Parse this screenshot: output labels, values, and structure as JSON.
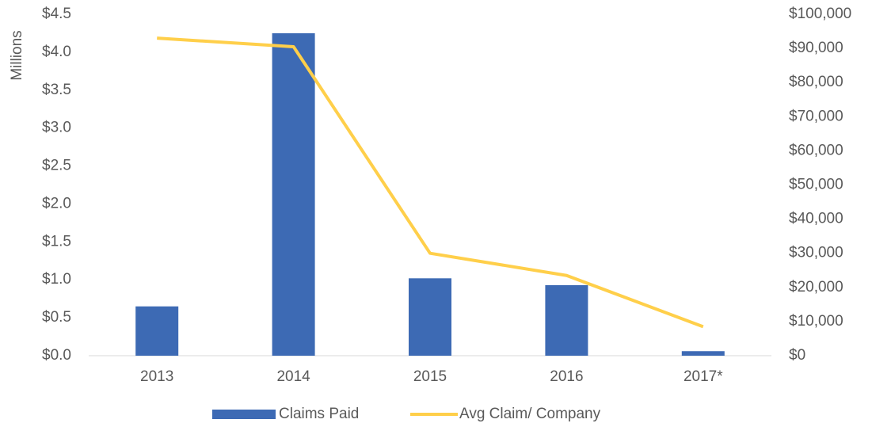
{
  "chart_data": {
    "type": "bar_line",
    "y_axis_label": "Millions",
    "categories": [
      "2013",
      "2014",
      "2015",
      "2016",
      "2017*"
    ],
    "series": [
      {
        "name": "Claims Paid",
        "type": "bar",
        "color": "#3d6ab4",
        "values": [
          0.65,
          4.25,
          1.02,
          0.93,
          0.06
        ]
      },
      {
        "name": "Avg Claim/ Company",
        "type": "line",
        "axis": "y2",
        "color": "#ffcf4a",
        "values": [
          93000,
          90500,
          30000,
          23500,
          8500
        ]
      }
    ],
    "ylim": [
      0,
      4.5
    ],
    "yticks": [
      {
        "value": 0,
        "label": "$0.0"
      },
      {
        "value": 0.5,
        "label": "$0.5"
      },
      {
        "value": 1,
        "label": "$1.0"
      },
      {
        "value": 1.5,
        "label": "$1.5"
      },
      {
        "value": 2,
        "label": "$2.0"
      },
      {
        "value": 2.5,
        "label": "$2.5"
      },
      {
        "value": 3,
        "label": "$3.0"
      },
      {
        "value": 3.5,
        "label": "$3.5"
      },
      {
        "value": 4,
        "label": "$4.0"
      },
      {
        "value": 4.5,
        "label": "$4.5"
      }
    ],
    "y2lim": [
      0,
      100000
    ],
    "y2ticks": [
      {
        "value": 0,
        "label": "$0"
      },
      {
        "value": 10000,
        "label": "$10,000"
      },
      {
        "value": 20000,
        "label": "$20,000"
      },
      {
        "value": 30000,
        "label": "$30,000"
      },
      {
        "value": 40000,
        "label": "$40,000"
      },
      {
        "value": 50000,
        "label": "$50,000"
      },
      {
        "value": 60000,
        "label": "$60,000"
      },
      {
        "value": 70000,
        "label": "$70,000"
      },
      {
        "value": 80000,
        "label": "$80,000"
      },
      {
        "value": 90000,
        "label": "$90,000"
      },
      {
        "value": 100000,
        "label": "$100,000"
      }
    ],
    "grid": false,
    "legend": "bottom"
  }
}
